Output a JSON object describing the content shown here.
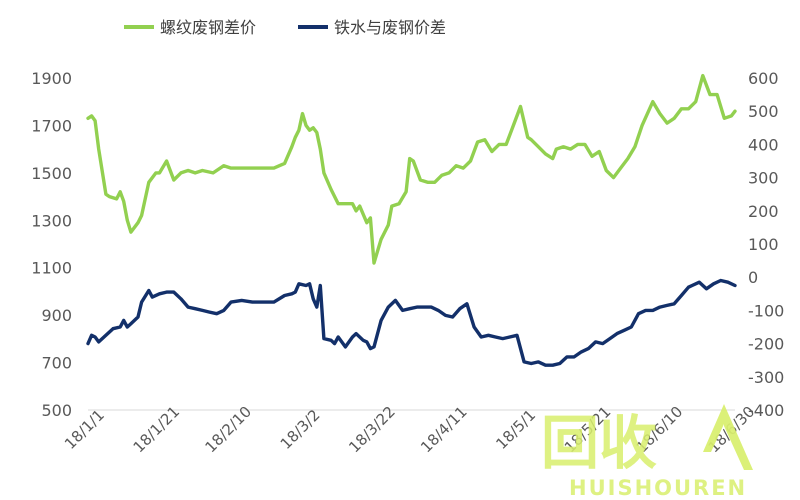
{
  "chart_data": {
    "type": "line",
    "title": "",
    "xlabel": "",
    "ylabel_left": "",
    "ylabel_right": "",
    "legend_position": "top",
    "grid": false,
    "x_ticks": [
      "18/1/1",
      "18/1/21",
      "18/2/10",
      "18/3/2",
      "18/3/22",
      "18/4/11",
      "18/5/1",
      "18/5/21",
      "18/6/10",
      "18/6/30"
    ],
    "ylim_left": [
      500,
      1900
    ],
    "yticks_left": [
      "1900",
      "1700",
      "1500",
      "1300",
      "1100",
      "900",
      "700",
      "500"
    ],
    "ylim_right": [
      -400,
      600
    ],
    "yticks_right": [
      "600",
      "500",
      "400",
      "300",
      "200",
      "100",
      "0",
      "-100",
      "-200",
      "-300",
      "-400"
    ],
    "series": [
      {
        "name": "螺纹废钢差价",
        "axis": "left",
        "color": "#92d050",
        "x": [
          "2018-01-01",
          "2018-01-02",
          "2018-01-03",
          "2018-01-04",
          "2018-01-06",
          "2018-01-07",
          "2018-01-09",
          "2018-01-10",
          "2018-01-11",
          "2018-01-12",
          "2018-01-13",
          "2018-01-15",
          "2018-01-16",
          "2018-01-18",
          "2018-01-20",
          "2018-01-21",
          "2018-01-23",
          "2018-01-25",
          "2018-01-27",
          "2018-01-29",
          "2018-01-31",
          "2018-02-02",
          "2018-02-05",
          "2018-02-08",
          "2018-02-10",
          "2018-02-13",
          "2018-02-16",
          "2018-02-19",
          "2018-02-22",
          "2018-02-25",
          "2018-02-27",
          "2018-02-28",
          "2018-03-01",
          "2018-03-02",
          "2018-03-03",
          "2018-03-04",
          "2018-03-05",
          "2018-03-06",
          "2018-03-07",
          "2018-03-08",
          "2018-03-10",
          "2018-03-12",
          "2018-03-14",
          "2018-03-16",
          "2018-03-17",
          "2018-03-18",
          "2018-03-20",
          "2018-03-21",
          "2018-03-22",
          "2018-03-24",
          "2018-03-26",
          "2018-03-27",
          "2018-03-29",
          "2018-03-31",
          "2018-04-01",
          "2018-04-02",
          "2018-04-04",
          "2018-04-06",
          "2018-04-08",
          "2018-04-10",
          "2018-04-12",
          "2018-04-14",
          "2018-04-16",
          "2018-04-18",
          "2018-04-20",
          "2018-04-22",
          "2018-04-24",
          "2018-04-26",
          "2018-04-28",
          "2018-04-30",
          "2018-05-02",
          "2018-05-04",
          "2018-05-05",
          "2018-05-07",
          "2018-05-09",
          "2018-05-11",
          "2018-05-12",
          "2018-05-14",
          "2018-05-16",
          "2018-05-18",
          "2018-05-20",
          "2018-05-22",
          "2018-05-24",
          "2018-05-26",
          "2018-05-28",
          "2018-05-30",
          "2018-06-01",
          "2018-06-03",
          "2018-06-05",
          "2018-06-08",
          "2018-06-10",
          "2018-06-12",
          "2018-06-14",
          "2018-06-16",
          "2018-06-18",
          "2018-06-20",
          "2018-06-22",
          "2018-06-24",
          "2018-06-26",
          "2018-06-28",
          "2018-06-30",
          "2018-07-01"
        ],
        "values": [
          1730,
          1740,
          1720,
          1600,
          1410,
          1400,
          1390,
          1420,
          1380,
          1300,
          1250,
          1290,
          1320,
          1460,
          1500,
          1500,
          1550,
          1470,
          1500,
          1510,
          1500,
          1510,
          1500,
          1530,
          1520,
          1520,
          1520,
          1520,
          1520,
          1540,
          1610,
          1650,
          1680,
          1750,
          1700,
          1680,
          1690,
          1670,
          1600,
          1500,
          1430,
          1370,
          1370,
          1370,
          1340,
          1360,
          1290,
          1310,
          1120,
          1220,
          1280,
          1360,
          1370,
          1420,
          1560,
          1550,
          1470,
          1460,
          1460,
          1490,
          1500,
          1530,
          1520,
          1550,
          1630,
          1640,
          1590,
          1620,
          1620,
          1700,
          1780,
          1650,
          1640,
          1610,
          1580,
          1560,
          1600,
          1610,
          1600,
          1620,
          1620,
          1570,
          1590,
          1510,
          1480,
          1520,
          1560,
          1610,
          1700,
          1800,
          1750,
          1710,
          1730,
          1770,
          1770,
          1800,
          1910,
          1830,
          1830,
          1730,
          1740,
          1760
        ]
      },
      {
        "name": "铁水与废钢价差",
        "axis": "right",
        "color": "#13306a",
        "x": [
          "2018-01-01",
          "2018-01-02",
          "2018-01-03",
          "2018-01-04",
          "2018-01-06",
          "2018-01-08",
          "2018-01-10",
          "2018-01-11",
          "2018-01-12",
          "2018-01-13",
          "2018-01-15",
          "2018-01-16",
          "2018-01-18",
          "2018-01-19",
          "2018-01-21",
          "2018-01-23",
          "2018-01-25",
          "2018-01-27",
          "2018-01-29",
          "2018-01-31",
          "2018-02-02",
          "2018-02-04",
          "2018-02-06",
          "2018-02-08",
          "2018-02-10",
          "2018-02-13",
          "2018-02-16",
          "2018-02-19",
          "2018-02-22",
          "2018-02-25",
          "2018-02-27",
          "2018-02-28",
          "2018-03-01",
          "2018-03-03",
          "2018-03-04",
          "2018-03-05",
          "2018-03-06",
          "2018-03-07",
          "2018-03-08",
          "2018-03-10",
          "2018-03-11",
          "2018-03-12",
          "2018-03-14",
          "2018-03-16",
          "2018-03-17",
          "2018-03-19",
          "2018-03-20",
          "2018-03-21",
          "2018-03-22",
          "2018-03-24",
          "2018-03-26",
          "2018-03-28",
          "2018-03-30",
          "2018-04-01",
          "2018-04-03",
          "2018-04-05",
          "2018-04-07",
          "2018-04-09",
          "2018-04-11",
          "2018-04-13",
          "2018-04-15",
          "2018-04-17",
          "2018-04-19",
          "2018-04-21",
          "2018-04-23",
          "2018-04-25",
          "2018-04-27",
          "2018-04-29",
          "2018-05-01",
          "2018-05-03",
          "2018-05-05",
          "2018-05-07",
          "2018-05-09",
          "2018-05-11",
          "2018-05-13",
          "2018-05-15",
          "2018-05-17",
          "2018-05-19",
          "2018-05-21",
          "2018-05-23",
          "2018-05-25",
          "2018-05-27",
          "2018-05-29",
          "2018-05-31",
          "2018-06-02",
          "2018-06-04",
          "2018-06-06",
          "2018-06-08",
          "2018-06-10",
          "2018-06-12",
          "2018-06-14",
          "2018-06-16",
          "2018-06-18",
          "2018-06-19",
          "2018-06-21",
          "2018-06-23",
          "2018-06-25",
          "2018-06-27",
          "2018-06-29",
          "2018-07-01"
        ],
        "values": [
          -200,
          -175,
          -180,
          -195,
          -175,
          -155,
          -150,
          -130,
          -150,
          -140,
          -120,
          -75,
          -40,
          -60,
          -50,
          -45,
          -45,
          -65,
          -90,
          -95,
          -100,
          -105,
          -110,
          -100,
          -75,
          -70,
          -75,
          -75,
          -75,
          -55,
          -50,
          -45,
          -20,
          -25,
          -20,
          -65,
          -90,
          -25,
          -185,
          -190,
          -200,
          -180,
          -210,
          -180,
          -170,
          -190,
          -195,
          -215,
          -210,
          -130,
          -90,
          -70,
          -100,
          -95,
          -90,
          -90,
          -90,
          -100,
          -115,
          -120,
          -95,
          -80,
          -150,
          -180,
          -175,
          -180,
          -185,
          -180,
          -175,
          -255,
          -260,
          -255,
          -265,
          -265,
          -260,
          -240,
          -240,
          -225,
          -215,
          -195,
          -200,
          -185,
          -170,
          -160,
          -150,
          -110,
          -100,
          -100,
          -90,
          -85,
          -80,
          -55,
          -30,
          -25,
          -15,
          -35,
          -20,
          -10,
          -15,
          -25
        ]
      }
    ]
  },
  "watermark": {
    "logo": "回收",
    "text": "HUISHOUREN",
    "color": "#d9ef6e"
  }
}
